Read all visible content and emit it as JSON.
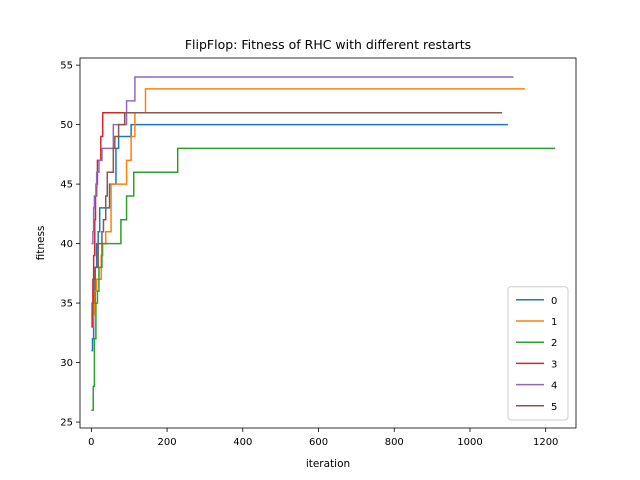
{
  "chart_data": {
    "type": "line",
    "title": "FlipFlop: Fitness of RHC with different restarts",
    "xlabel": "iteration",
    "ylabel": "fitness",
    "xlim": [
      -30,
      1280
    ],
    "ylim": [
      24.5,
      55.6
    ],
    "xticks": [
      0,
      200,
      400,
      600,
      800,
      1000,
      1200
    ],
    "yticks": [
      25,
      30,
      35,
      40,
      45,
      50,
      55
    ],
    "grid": false,
    "legend_position": "lower-right",
    "series": [
      {
        "name": "0",
        "color": "#1f77b4",
        "points": [
          [
            0,
            31
          ],
          [
            3,
            32
          ],
          [
            6,
            35
          ],
          [
            10,
            38
          ],
          [
            14,
            40
          ],
          [
            18,
            41
          ],
          [
            22,
            43
          ],
          [
            45,
            43
          ],
          [
            48,
            45
          ],
          [
            60,
            45
          ],
          [
            65,
            48
          ],
          [
            72,
            49
          ],
          [
            100,
            49
          ],
          [
            105,
            50
          ],
          [
            1100,
            50
          ]
        ]
      },
      {
        "name": "1",
        "color": "#ff7f0e",
        "points": [
          [
            0,
            33
          ],
          [
            4,
            34
          ],
          [
            8,
            36
          ],
          [
            14,
            37
          ],
          [
            24,
            37
          ],
          [
            26,
            39
          ],
          [
            30,
            40
          ],
          [
            38,
            41
          ],
          [
            48,
            41
          ],
          [
            52,
            45
          ],
          [
            90,
            45
          ],
          [
            93,
            47
          ],
          [
            102,
            47
          ],
          [
            105,
            49
          ],
          [
            112,
            49
          ],
          [
            115,
            51
          ],
          [
            140,
            51
          ],
          [
            143,
            53
          ],
          [
            1145,
            53
          ]
        ]
      },
      {
        "name": "2",
        "color": "#2ca02c",
        "points": [
          [
            0,
            26
          ],
          [
            4,
            26
          ],
          [
            5,
            28
          ],
          [
            8,
            32
          ],
          [
            12,
            35
          ],
          [
            16,
            36
          ],
          [
            20,
            38
          ],
          [
            25,
            38
          ],
          [
            28,
            40
          ],
          [
            75,
            40
          ],
          [
            78,
            42
          ],
          [
            90,
            42
          ],
          [
            93,
            44
          ],
          [
            108,
            44
          ],
          [
            112,
            46
          ],
          [
            225,
            46
          ],
          [
            228,
            48
          ],
          [
            1225,
            48
          ]
        ]
      },
      {
        "name": "3",
        "color": "#d62728",
        "points": [
          [
            0,
            33
          ],
          [
            2,
            35
          ],
          [
            4,
            37
          ],
          [
            6,
            39
          ],
          [
            9,
            42
          ],
          [
            11,
            44
          ],
          [
            14,
            45
          ],
          [
            16,
            47
          ],
          [
            23,
            47
          ],
          [
            25,
            49
          ],
          [
            28,
            49
          ],
          [
            30,
            51
          ],
          [
            1030,
            51
          ]
        ]
      },
      {
        "name": "4",
        "color": "#9467bd",
        "points": [
          [
            0,
            40
          ],
          [
            4,
            41
          ],
          [
            6,
            43
          ],
          [
            8,
            44
          ],
          [
            10,
            44
          ],
          [
            12,
            45
          ],
          [
            14,
            46
          ],
          [
            16,
            46
          ],
          [
            20,
            47
          ],
          [
            25,
            47
          ],
          [
            28,
            48
          ],
          [
            55,
            48
          ],
          [
            58,
            50
          ],
          [
            90,
            50
          ],
          [
            93,
            52
          ],
          [
            112,
            52
          ],
          [
            115,
            54
          ],
          [
            1115,
            54
          ]
        ]
      },
      {
        "name": "5",
        "color": "#8c564b",
        "points": [
          [
            0,
            34
          ],
          [
            3,
            35
          ],
          [
            6,
            37
          ],
          [
            10,
            38
          ],
          [
            18,
            40
          ],
          [
            25,
            40
          ],
          [
            28,
            41
          ],
          [
            32,
            42
          ],
          [
            38,
            44
          ],
          [
            42,
            46
          ],
          [
            55,
            46
          ],
          [
            58,
            48
          ],
          [
            62,
            49
          ],
          [
            68,
            49
          ],
          [
            72,
            50
          ],
          [
            85,
            50
          ],
          [
            88,
            51
          ],
          [
            1085,
            51
          ]
        ]
      }
    ]
  }
}
